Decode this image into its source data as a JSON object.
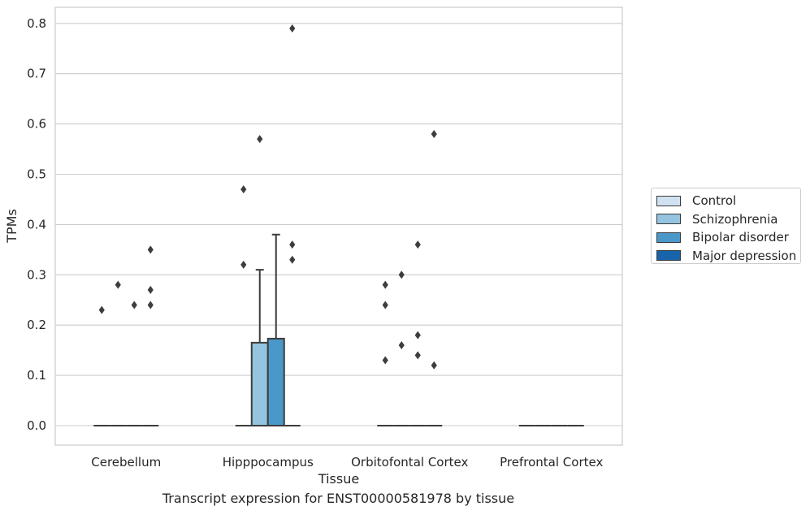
{
  "caption": "Transcript expression for ENST00000581978 by tissue",
  "chart_data": {
    "type": "box",
    "xlabel": "Tissue",
    "ylabel": "TPMs",
    "ylim": [
      -0.04,
      0.83
    ],
    "yticks": [
      0.0,
      0.1,
      0.2,
      0.3,
      0.4,
      0.5,
      0.6,
      0.7,
      0.8
    ],
    "ytick_labels": [
      "0.0",
      "0.1",
      "0.2",
      "0.3",
      "0.4",
      "0.5",
      "0.6",
      "0.7",
      "0.8"
    ],
    "categories": [
      "Cerebellum",
      "Hipppocampus",
      "Orbitofontal Cortex",
      "Prefrontal Cortex"
    ],
    "grid": "horizontal",
    "legend_position": "right",
    "series": [
      {
        "name": "Control",
        "color": "#d0e1f2",
        "boxes": [
          {
            "q1": 0,
            "median": 0,
            "q3": 0,
            "whisker_low": 0,
            "whisker_high": 0,
            "outliers": [
              0.23
            ]
          },
          {
            "q1": 0,
            "median": 0,
            "q3": 0,
            "whisker_low": 0,
            "whisker_high": 0,
            "outliers": [
              0.32,
              0.47
            ]
          },
          {
            "q1": 0,
            "median": 0,
            "q3": 0,
            "whisker_low": 0,
            "whisker_high": 0,
            "outliers": [
              0.13,
              0.24,
              0.28
            ]
          },
          {
            "q1": 0,
            "median": 0,
            "q3": 0,
            "whisker_low": 0,
            "whisker_high": 0,
            "outliers": []
          }
        ]
      },
      {
        "name": "Schizophrenia",
        "color": "#94c4df",
        "boxes": [
          {
            "q1": 0,
            "median": 0,
            "q3": 0,
            "whisker_low": 0,
            "whisker_high": 0,
            "outliers": [
              0.28
            ]
          },
          {
            "q1": 0,
            "median": 0,
            "q3": 0.165,
            "whisker_low": 0,
            "whisker_high": 0.31,
            "outliers": [
              0.57
            ]
          },
          {
            "q1": 0,
            "median": 0,
            "q3": 0,
            "whisker_low": 0,
            "whisker_high": 0,
            "outliers": [
              0.16,
              0.3
            ]
          },
          {
            "q1": 0,
            "median": 0,
            "q3": 0,
            "whisker_low": 0,
            "whisker_high": 0,
            "outliers": []
          }
        ]
      },
      {
        "name": "Bipolar disorder",
        "color": "#4a98c9",
        "boxes": [
          {
            "q1": 0,
            "median": 0,
            "q3": 0,
            "whisker_low": 0,
            "whisker_high": 0,
            "outliers": [
              0.24
            ]
          },
          {
            "q1": 0,
            "median": 0,
            "q3": 0.173,
            "whisker_low": 0,
            "whisker_high": 0.38,
            "outliers": []
          },
          {
            "q1": 0,
            "median": 0,
            "q3": 0,
            "whisker_low": 0,
            "whisker_high": 0,
            "outliers": [
              0.14,
              0.18,
              0.36
            ]
          },
          {
            "q1": 0,
            "median": 0,
            "q3": 0,
            "whisker_low": 0,
            "whisker_high": 0,
            "outliers": []
          }
        ]
      },
      {
        "name": "Major depression",
        "color": "#1764ab",
        "boxes": [
          {
            "q1": 0,
            "median": 0,
            "q3": 0,
            "whisker_low": 0,
            "whisker_high": 0,
            "outliers": [
              0.24,
              0.27,
              0.35
            ]
          },
          {
            "q1": 0,
            "median": 0,
            "q3": 0,
            "whisker_low": 0,
            "whisker_high": 0,
            "outliers": [
              0.33,
              0.36,
              0.79
            ]
          },
          {
            "q1": 0,
            "median": 0,
            "q3": 0,
            "whisker_low": 0,
            "whisker_high": 0,
            "outliers": [
              0.12,
              0.58
            ]
          },
          {
            "q1": 0,
            "median": 0,
            "q3": 0,
            "whisker_low": 0,
            "whisker_high": 0,
            "outliers": []
          }
        ]
      }
    ]
  }
}
